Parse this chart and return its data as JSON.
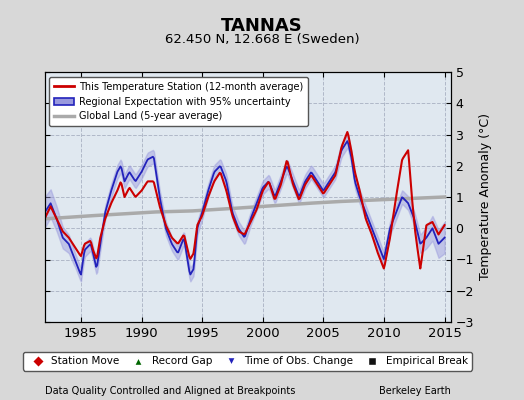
{
  "title": "TANNAS",
  "subtitle": "62.450 N, 12.668 E (Sweden)",
  "xlabel_bottom": "Data Quality Controlled and Aligned at Breakpoints",
  "xlabel_right": "Berkeley Earth",
  "ylabel": "Temperature Anomaly (°C)",
  "xlim": [
    1982.0,
    2015.5
  ],
  "ylim": [
    -3,
    5
  ],
  "yticks": [
    -3,
    -2,
    -1,
    0,
    1,
    2,
    3,
    4,
    5
  ],
  "xticks": [
    1985,
    1990,
    1995,
    2000,
    2005,
    2010,
    2015
  ],
  "bg_color": "#d8d8d8",
  "plot_bg_color": "#e0e8f0",
  "grid_color": "#b0b8c8",
  "grid_style": "--"
}
